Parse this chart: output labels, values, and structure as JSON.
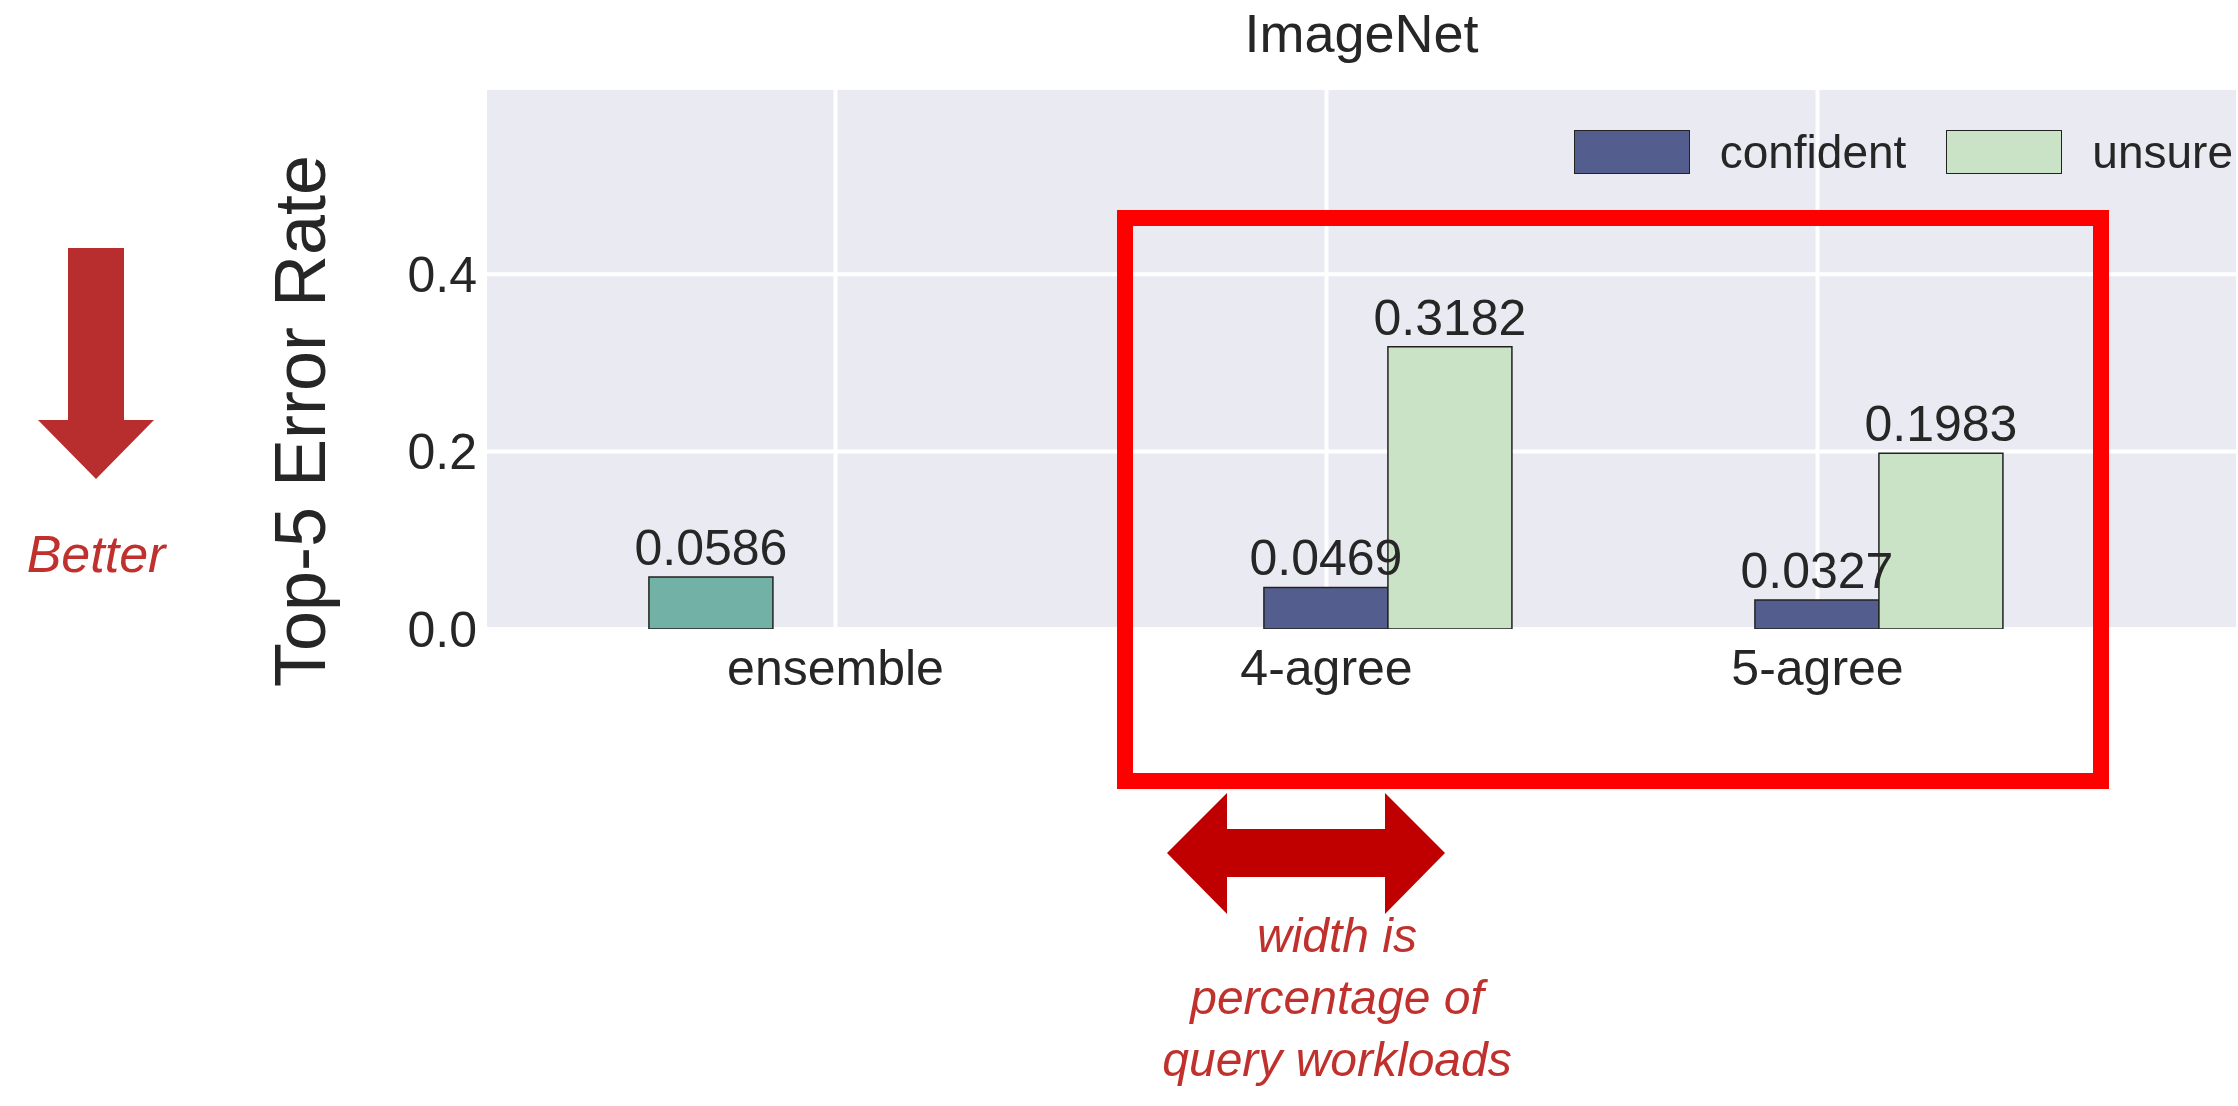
{
  "chart_data": {
    "type": "bar",
    "title": "ImageNet",
    "ylabel": "Top-5 Error Rate",
    "categories": [
      "ensemble",
      "4-agree",
      "5-agree"
    ],
    "series": [
      {
        "color": "#72b1a5",
        "values": [
          0.0586,
          null,
          null
        ]
      },
      {
        "name": "confident",
        "color": "#535e8e",
        "values": [
          null,
          0.0469,
          0.0327
        ]
      },
      {
        "name": "unsure",
        "color": "#cae2c6",
        "values": [
          null,
          0.3182,
          0.1983
        ]
      }
    ],
    "ylim": [
      0,
      0.61
    ],
    "yticks": [
      {
        "value": 0,
        "label": "0.0"
      },
      {
        "value": 0.2,
        "label": "0.2"
      },
      {
        "value": 0.4,
        "label": "0.4"
      }
    ],
    "grid": true,
    "legend": "top right",
    "data_labels": true,
    "annotations": [
      "Better",
      "width is\npercentage of\nquery workloads"
    ]
  }
}
